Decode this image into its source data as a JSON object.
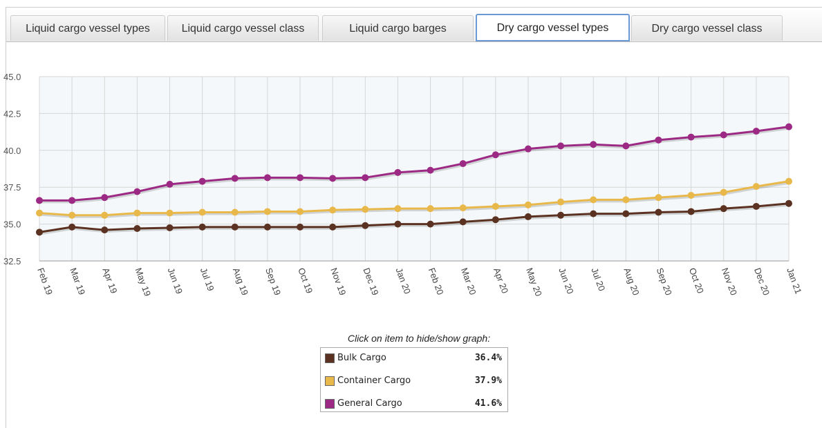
{
  "tabs": [
    "Liquid cargo vessel types",
    "Liquid cargo vessel class",
    "Liquid cargo barges",
    "Dry cargo vessel types",
    "Dry cargo vessel class"
  ],
  "chart_data": {
    "type": "line",
    "categories": [
      "Feb 19",
      "Mar 19",
      "Apr 19",
      "May 19",
      "Jun 19",
      "Jul 19",
      "Aug 19",
      "Sep 19",
      "Oct 19",
      "Nov 19",
      "Dec 19",
      "Jan 20",
      "Feb 20",
      "Mar 20",
      "Apr 20",
      "May 20",
      "Jun 20",
      "Jul 20",
      "Aug 20",
      "Sep 20",
      "Oct 20",
      "Nov 20",
      "Dec 20",
      "Jan 21"
    ],
    "series": [
      {
        "name": "Bulk Cargo",
        "color": "#5b3222",
        "legend_value": "36.4%",
        "values": [
          34.45,
          34.8,
          34.6,
          34.7,
          34.75,
          34.8,
          34.8,
          34.8,
          34.8,
          34.8,
          34.9,
          35.0,
          35.0,
          35.15,
          35.3,
          35.5,
          35.6,
          35.7,
          35.7,
          35.8,
          35.85,
          36.05,
          36.2,
          36.4
        ]
      },
      {
        "name": "Container Cargo",
        "color": "#e8b84a",
        "legend_value": "37.9%",
        "values": [
          35.75,
          35.6,
          35.6,
          35.75,
          35.75,
          35.8,
          35.8,
          35.85,
          35.85,
          35.95,
          36.0,
          36.05,
          36.05,
          36.1,
          36.2,
          36.3,
          36.5,
          36.65,
          36.65,
          36.8,
          36.95,
          37.15,
          37.55,
          37.9
        ]
      },
      {
        "name": "General Cargo",
        "color": "#9c2a85",
        "legend_value": "41.6%",
        "values": [
          36.6,
          36.6,
          36.8,
          37.2,
          37.7,
          37.9,
          38.1,
          38.15,
          38.15,
          38.1,
          38.15,
          38.5,
          38.65,
          39.1,
          39.7,
          40.1,
          40.3,
          40.4,
          40.3,
          40.7,
          40.9,
          41.05,
          41.3,
          41.6
        ]
      }
    ],
    "ylim": [
      32.5,
      45
    ],
    "yticks": [
      {
        "value": 32.5,
        "label": "32.5"
      },
      {
        "value": 35,
        "label": "35.0"
      },
      37.5,
      {
        "value": 40,
        "label": "40.0"
      },
      42.5,
      {
        "value": 45,
        "label": "45.0"
      }
    ],
    "grid": true,
    "legend_title": "Click on item to hide/show graph:"
  }
}
